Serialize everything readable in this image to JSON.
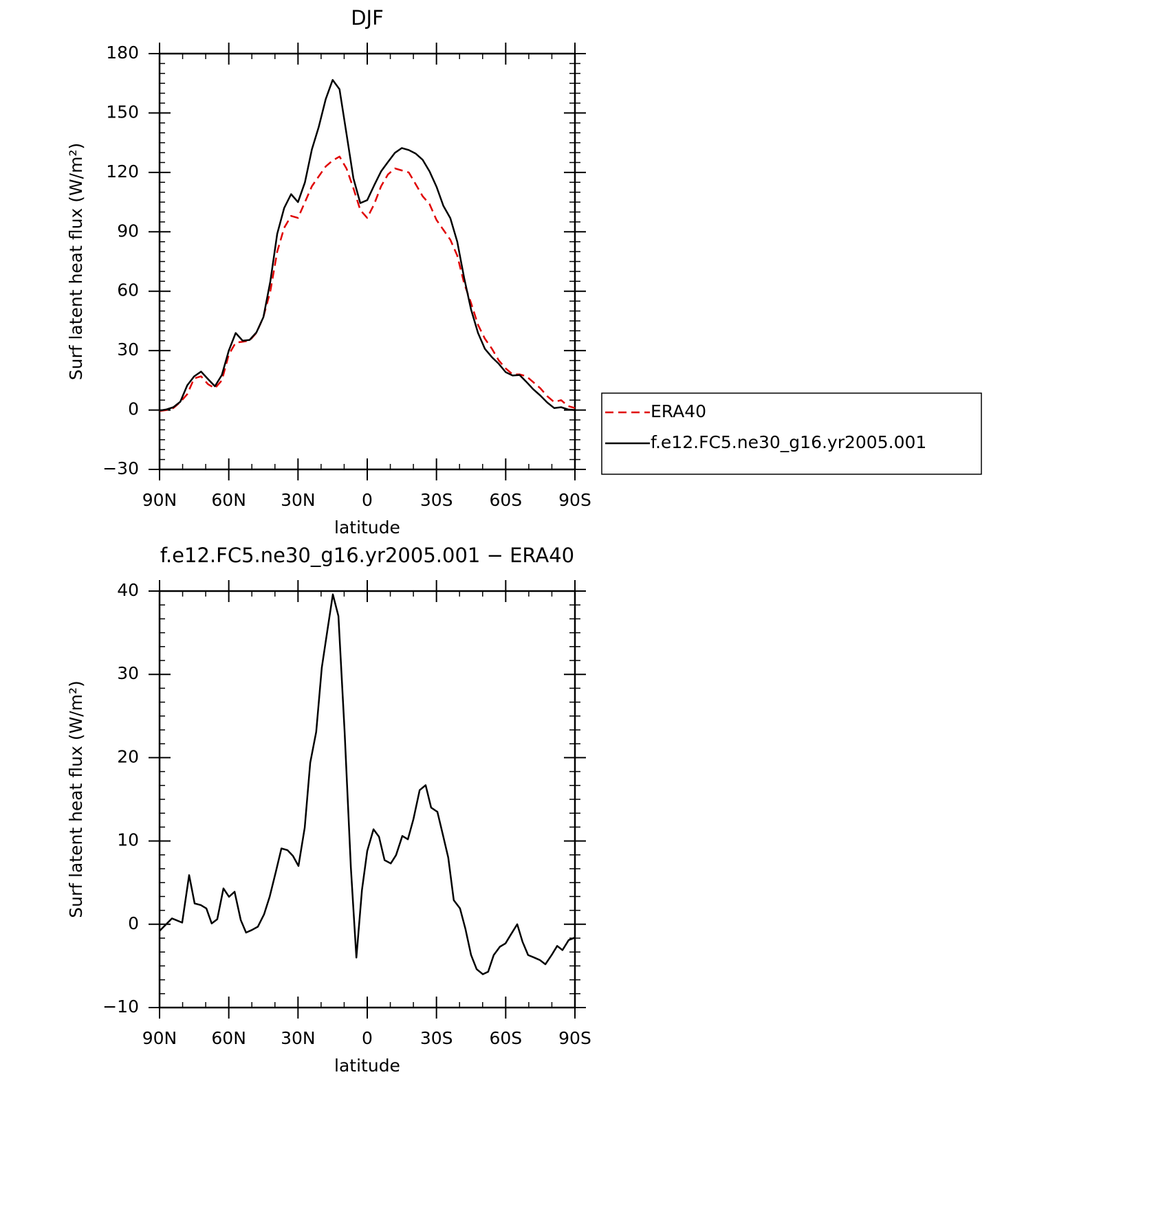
{
  "chart_data": [
    {
      "type": "line",
      "title": "DJF",
      "xlabel": "latitude",
      "ylabel": "Surf latent heat flux (W/m²)",
      "xlim": [
        90,
        -90
      ],
      "xticks": [
        {
          "value": 90,
          "label": "90N"
        },
        {
          "value": 60,
          "label": "60N"
        },
        {
          "value": 30,
          "label": "30N"
        },
        0,
        {
          "value": -30,
          "label": "30S"
        },
        {
          "value": -60,
          "label": "60S"
        },
        {
          "value": -90,
          "label": "90S"
        }
      ],
      "ylim": [
        -30,
        180
      ],
      "yticks": [
        {
          "value": -30,
          "label": "−30"
        },
        0,
        30,
        60,
        90,
        120,
        150,
        180
      ],
      "x": [
        90,
        87,
        84,
        81,
        78,
        75,
        72,
        69,
        66,
        63,
        60,
        57,
        54,
        51,
        48,
        45,
        42,
        39,
        36,
        33,
        30,
        27,
        24,
        21,
        18,
        15,
        12,
        9,
        6,
        3,
        0,
        -3,
        -6,
        -9,
        -12,
        -15,
        -18,
        -21,
        -24,
        -27,
        -30,
        -33,
        -36,
        -39,
        -42,
        -45,
        -48,
        -51,
        -54,
        -57,
        -60,
        -63,
        -66,
        -69,
        -72,
        -75,
        -78,
        -81,
        -84,
        -87,
        -90
      ],
      "legend": "right",
      "series": [
        {
          "name": "ERA40",
          "color": "#e00000",
          "dashed": true,
          "values": [
            -0.5,
            0,
            1,
            4,
            8,
            16,
            17,
            13,
            11,
            15,
            28,
            34,
            34.5,
            35,
            39,
            47,
            60,
            80,
            92,
            98,
            97,
            105,
            113,
            118,
            123,
            126,
            128,
            122,
            112,
            101,
            97,
            104,
            113,
            119,
            122,
            121,
            120,
            114,
            108,
            104,
            96,
            91,
            86,
            78,
            64,
            54,
            43,
            36,
            31,
            25,
            21,
            18,
            18,
            17,
            14,
            11,
            7,
            4,
            5,
            2,
            1
          ]
        },
        {
          "name": "f.e12.FC5.ne30_g16.yr2005.001",
          "color": "#000000",
          "dashed": false,
          "values": [
            -0.3,
            0.3,
            1.4,
            4.2,
            12.5,
            17,
            19.4,
            15.6,
            12,
            17.7,
            30,
            38.9,
            35,
            35.4,
            39.2,
            46.9,
            65,
            89,
            102,
            109,
            105,
            115,
            131.6,
            143,
            157,
            166.7,
            162,
            139.6,
            117,
            104.5,
            106,
            113.5,
            120.5,
            125.3,
            129.9,
            132.3,
            131.3,
            129.5,
            126.4,
            120.5,
            112.8,
            103.1,
            96.9,
            85,
            66.7,
            50.7,
            38.9,
            30.9,
            26.7,
            23.3,
            19.1,
            17.4,
            17.7,
            14.2,
            10.4,
            7.3,
            3.8,
            1,
            1.4,
            0.3,
            0
          ]
        }
      ]
    },
    {
      "type": "line",
      "title": "f.e12.FC5.ne30_g16.yr2005.001 − ERA40",
      "xlabel": "latitude",
      "ylabel": "Surf latent heat flux (W/m²)",
      "xlim": [
        90,
        -90
      ],
      "xticks": [
        {
          "value": 90,
          "label": "90N"
        },
        {
          "value": 60,
          "label": "60N"
        },
        {
          "value": 30,
          "label": "30N"
        },
        0,
        {
          "value": -30,
          "label": "30S"
        },
        {
          "value": -60,
          "label": "60S"
        },
        {
          "value": -90,
          "label": "90S"
        }
      ],
      "ylim": [
        -10,
        40
      ],
      "yticks": [
        {
          "value": -10,
          "label": "−10"
        },
        0,
        10,
        20,
        30,
        40
      ],
      "x": [
        90,
        84.6,
        80.2,
        77.2,
        74.8,
        72.1,
        69.7,
        67.4,
        65.0,
        62.3,
        59.9,
        57.5,
        54.8,
        52.5,
        50.1,
        47.4,
        44.7,
        42.3,
        39.6,
        37.2,
        34.6,
        32.2,
        29.8,
        27.1,
        24.7,
        22.1,
        19.7,
        17.3,
        14.9,
        12.5,
        9.8,
        7.1,
        4.7,
        2.3,
        0,
        -2.7,
        -5.1,
        -7.5,
        -10.2,
        -12.5,
        -15.2,
        -17.6,
        -20,
        -22.7,
        -25.3,
        -27.7,
        -30.4,
        -32.8,
        -35.1,
        -37.5,
        -40.2,
        -42.6,
        -45,
        -47.4,
        -50.1,
        -52.4,
        -54.8,
        -57.5,
        -59.9,
        -62.3,
        -65,
        -67.3,
        -69.7,
        -72.4,
        -74.8,
        -77.2,
        -79.9,
        -82.3,
        -84.6,
        -87.3,
        -90
      ],
      "series": [
        {
          "color": "#000000",
          "dashed": false,
          "values": [
            -0.8,
            0.7,
            0.2,
            5.9,
            2.5,
            2.3,
            1.9,
            0.1,
            0.6,
            4.3,
            3.3,
            3.9,
            0.5,
            -1,
            -0.7,
            -0.3,
            1.2,
            3.3,
            6.3,
            9.1,
            8.9,
            8.2,
            7,
            11.6,
            19.4,
            23.1,
            30.8,
            35.2,
            39.6,
            37,
            23.1,
            6.8,
            -4,
            4.1,
            8.8,
            11.4,
            10.5,
            7.7,
            7.3,
            8.3,
            10.6,
            10.2,
            12.6,
            16.1,
            16.7,
            14,
            13.5,
            10.7,
            8,
            2.9,
            1.9,
            -0.6,
            -3.7,
            -5.4,
            -6,
            -5.7,
            -3.7,
            -2.7,
            -2.3,
            -1.2,
            0,
            -2.1,
            -3.7,
            -4,
            -4.3,
            -4.8,
            -3.7,
            -2.6,
            -3.1,
            -1.9,
            -1.6
          ]
        }
      ]
    }
  ]
}
